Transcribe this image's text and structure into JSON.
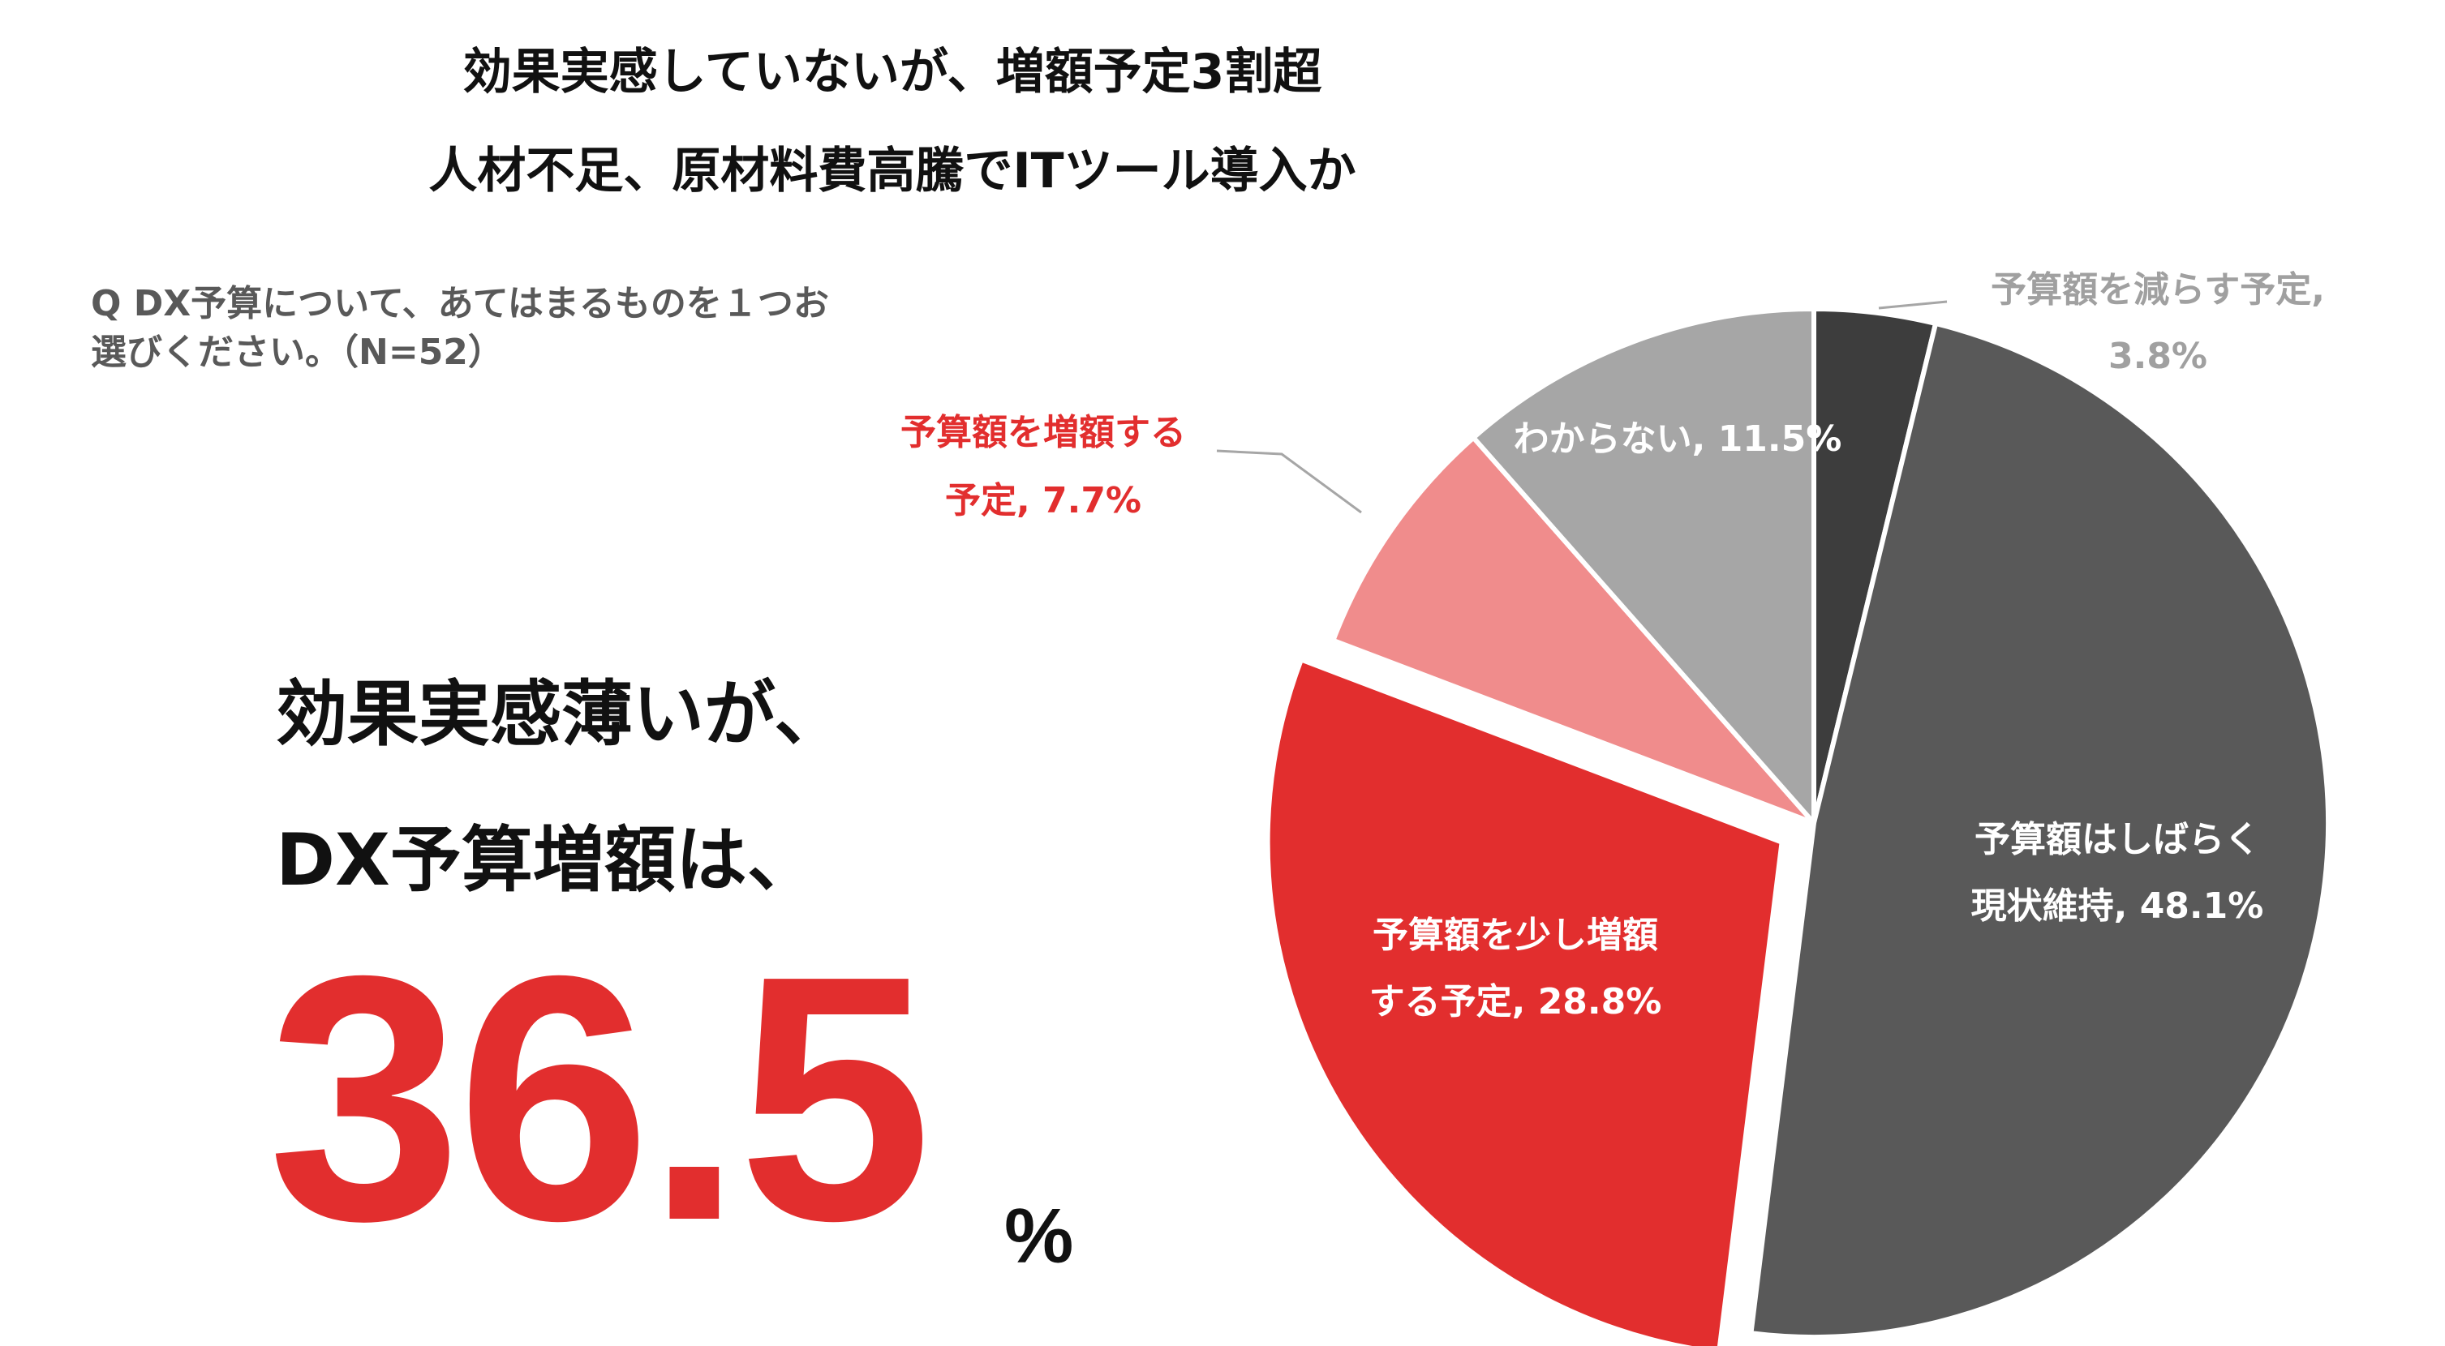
{
  "header": {
    "title_line1": "効果実感していないが、増額予定3割超",
    "title_line2": "人材不足、原材料費高騰でITツール導入か"
  },
  "question": {
    "line1": "Q DX予算について、あてはまるものを１つお",
    "line2": "選びください。（N=52）"
  },
  "headline": {
    "line1": "効果実感薄いが、",
    "line2": "DX予算増額は、",
    "number": "36.5",
    "unit": "%"
  },
  "chart_data": {
    "type": "pie",
    "start_angle_deg": 0,
    "direction": "clockwise",
    "slices": [
      {
        "label_line1": "予算額を減らす予定,",
        "label_line2": "3.8%",
        "value": 3.8,
        "color": "#3d3d3d",
        "label_color": "#a0a0a0",
        "exploded": false
      },
      {
        "label_line1": "予算額はしばらく",
        "label_line2": "現状維持, 48.1%",
        "value": 48.1,
        "color": "#595959",
        "label_color": "#ffffff",
        "exploded": false
      },
      {
        "label_line1": "予算額を少し増額",
        "label_line2": "する予定, 28.8%",
        "value": 28.8,
        "color": "#e22e2e",
        "label_color": "#ffffff",
        "exploded": true
      },
      {
        "label_line1": "予算額を増額する",
        "label_line2": "予定, 7.7%",
        "value": 7.7,
        "color": "#f08c8c",
        "label_color": "#e22e2e",
        "exploded": false
      },
      {
        "label_line1": "わからない, 11.5%",
        "label_line2": "",
        "value": 11.5,
        "color": "#a6a6a6",
        "label_color": "#ffffff",
        "exploded": false
      }
    ]
  }
}
